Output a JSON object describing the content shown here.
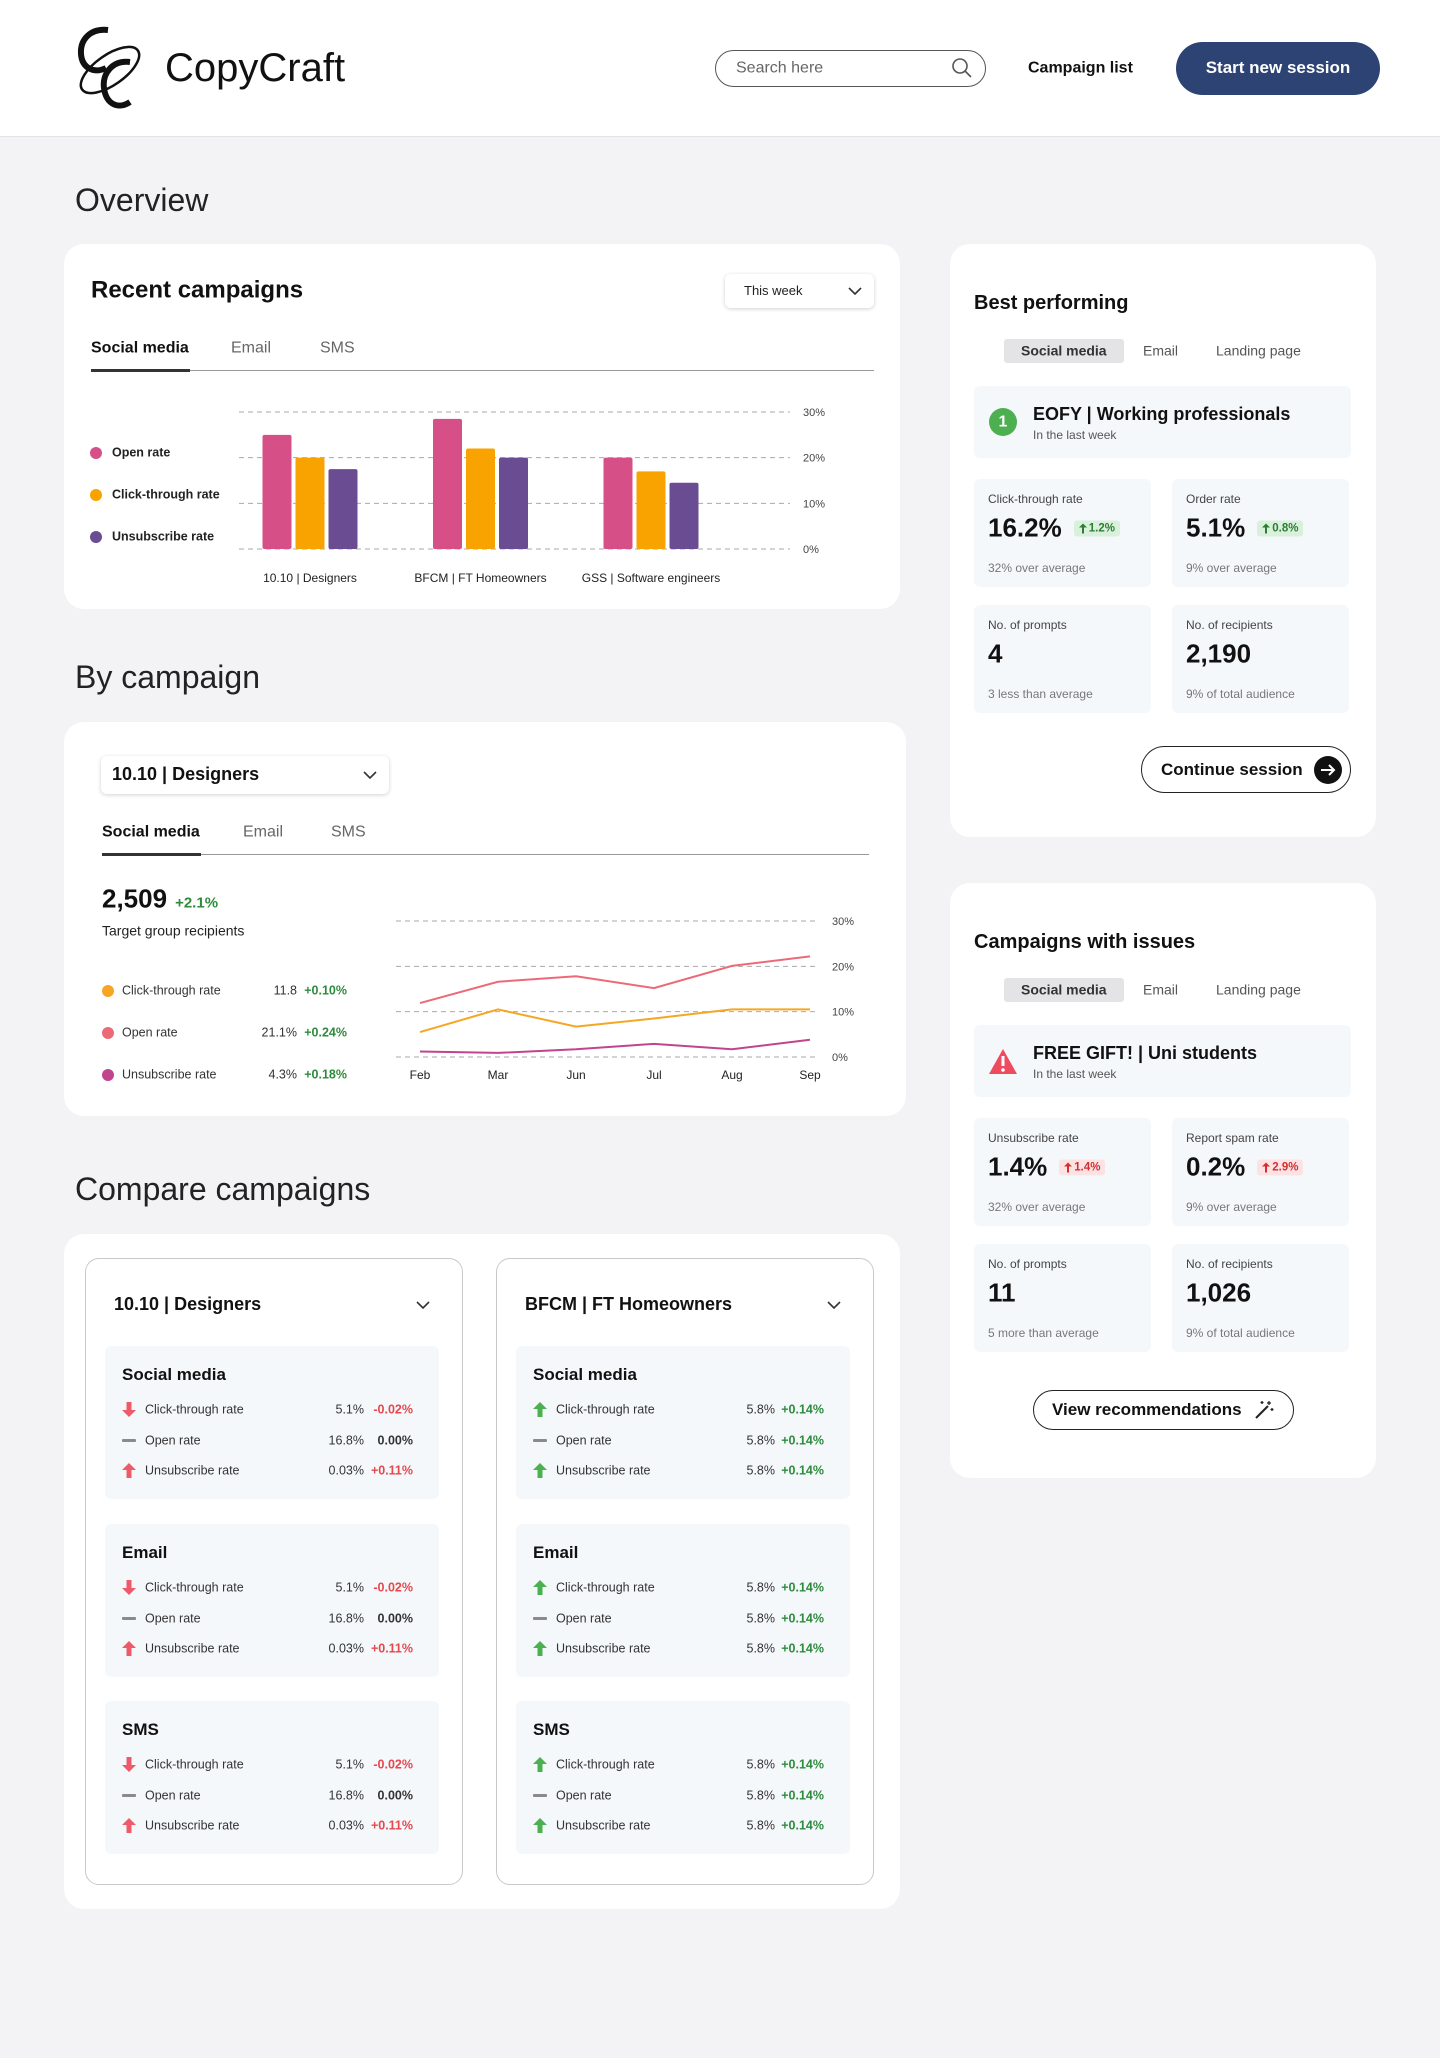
{
  "header": {
    "brand": "CopyCraft",
    "search_placeholder": "Search here",
    "nav": "Campaign list",
    "cta": "Start new session"
  },
  "overview": {
    "heading": "Overview",
    "recent": {
      "title": "Recent campaigns",
      "period": "This week",
      "tabs": [
        "Social media",
        "Email",
        "SMS"
      ],
      "chart_data": {
        "type": "bar",
        "categories": [
          "10.10 | Designers",
          "BFCM | FT Homeowners",
          "GSS | Software engineers"
        ],
        "series": [
          {
            "name": "Open rate",
            "color": "#d64f86",
            "values": [
              25,
              28.5,
              20
            ]
          },
          {
            "name": "Click-through rate",
            "color": "#f9a300",
            "values": [
              20,
              22,
              17
            ]
          },
          {
            "name": "Unsubscribe rate",
            "color": "#6a4c93",
            "values": [
              17.5,
              20,
              14.5
            ]
          }
        ],
        "ylim": [
          0,
          30
        ],
        "yticks": [
          {
            "value": 0,
            "label": "0%"
          },
          {
            "value": 10,
            "label": "10%"
          },
          {
            "value": 20,
            "label": "20%"
          },
          {
            "value": 30,
            "label": "30%"
          }
        ],
        "grid": true
      }
    }
  },
  "by_campaign": {
    "heading": "By campaign",
    "campaign": "10.10 | Designers",
    "tabs": [
      "Social media",
      "Email",
      "SMS"
    ],
    "recipients": "2,509",
    "recipients_change": "+2.1%",
    "recipients_label": "Target group recipients",
    "legend_values": [
      "11.8",
      "21.1%",
      "4.3%"
    ],
    "legend_changes": [
      "+0.10%",
      "+0.24%",
      "+0.18%"
    ],
    "chart_data": {
      "type": "line",
      "categories": [
        "Feb",
        "Mar",
        "Jun",
        "Jul",
        "Aug",
        "Sep"
      ],
      "series": [
        {
          "name": "Click-through rate",
          "color": "#f5a623",
          "values": [
            5.5,
            10.5,
            6.7,
            8.5,
            10.5,
            10.5
          ]
        },
        {
          "name": "Open rate",
          "color": "#ec6a78",
          "values": [
            11.9,
            16.6,
            17.8,
            15.2,
            20.1,
            22.2
          ]
        },
        {
          "name": "Unsubscribe rate",
          "color": "#c0448e",
          "values": [
            1.2,
            0.9,
            1.7,
            2.9,
            1.7,
            3.8
          ]
        }
      ],
      "ylim": [
        0,
        30
      ],
      "yticks": [
        {
          "value": 0,
          "label": "0%"
        },
        {
          "value": 10,
          "label": "10%"
        },
        {
          "value": 20,
          "label": "20%"
        },
        {
          "value": 30,
          "label": "30%"
        }
      ],
      "grid": true
    }
  },
  "compare": {
    "heading": "Compare campaigns",
    "campaigns": [
      {
        "name": "10.10 | Designers",
        "sections": [
          {
            "channel": "Social media",
            "rows": [
              {
                "metric": "Click-through rate",
                "value": "5.1%",
                "change": "-0.02%",
                "icon": "down",
                "color": "#e5484d"
              },
              {
                "metric": "Open rate",
                "value": "16.8%",
                "change": "0.00%",
                "icon": "flat",
                "color": "#333333"
              },
              {
                "metric": "Unsubscribe rate",
                "value": "0.03%",
                "change": "+0.11%",
                "icon": "up",
                "color": "#e5484d"
              }
            ]
          },
          {
            "channel": "Email",
            "rows": [
              {
                "metric": "Click-through rate",
                "value": "5.1%",
                "change": "-0.02%",
                "icon": "down",
                "color": "#e5484d"
              },
              {
                "metric": "Open rate",
                "value": "16.8%",
                "change": "0.00%",
                "icon": "flat",
                "color": "#333333"
              },
              {
                "metric": "Unsubscribe rate",
                "value": "0.03%",
                "change": "+0.11%",
                "icon": "up",
                "color": "#e5484d"
              }
            ]
          },
          {
            "channel": "SMS",
            "rows": [
              {
                "metric": "Click-through rate",
                "value": "5.1%",
                "change": "-0.02%",
                "icon": "down",
                "color": "#e5484d"
              },
              {
                "metric": "Open rate",
                "value": "16.8%",
                "change": "0.00%",
                "icon": "flat",
                "color": "#333333"
              },
              {
                "metric": "Unsubscribe rate",
                "value": "0.03%",
                "change": "+0.11%",
                "icon": "up",
                "color": "#e5484d"
              }
            ]
          }
        ]
      },
      {
        "name": "BFCM | FT Homeowners",
        "sections": [
          {
            "channel": "Social media",
            "rows": [
              {
                "metric": "Click-through rate",
                "value": "5.8%",
                "change": "+0.14%",
                "icon": "up",
                "color": "#2e8b3d"
              },
              {
                "metric": "Open rate",
                "value": "5.8%",
                "change": "+0.14%",
                "icon": "flat",
                "color": "#2e8b3d"
              },
              {
                "metric": "Unsubscribe rate",
                "value": "5.8%",
                "change": "+0.14%",
                "icon": "up",
                "color": "#2e8b3d"
              }
            ]
          },
          {
            "channel": "Email",
            "rows": [
              {
                "metric": "Click-through rate",
                "value": "5.8%",
                "change": "+0.14%",
                "icon": "up",
                "color": "#2e8b3d"
              },
              {
                "metric": "Open rate",
                "value": "5.8%",
                "change": "+0.14%",
                "icon": "flat",
                "color": "#2e8b3d"
              },
              {
                "metric": "Unsubscribe rate",
                "value": "5.8%",
                "change": "+0.14%",
                "icon": "up",
                "color": "#2e8b3d"
              }
            ]
          },
          {
            "channel": "SMS",
            "rows": [
              {
                "metric": "Click-through rate",
                "value": "5.8%",
                "change": "+0.14%",
                "icon": "up",
                "color": "#2e8b3d"
              },
              {
                "metric": "Open rate",
                "value": "5.8%",
                "change": "+0.14%",
                "icon": "flat",
                "color": "#2e8b3d"
              },
              {
                "metric": "Unsubscribe rate",
                "value": "5.8%",
                "change": "+0.14%",
                "icon": "up",
                "color": "#2e8b3d"
              }
            ]
          }
        ]
      }
    ]
  },
  "best": {
    "title": "Best performing",
    "tabs": [
      "Social media",
      "Email",
      "Landing page"
    ],
    "rank": "1",
    "campaign": "EOFY | Working professionals",
    "period": "In the last week",
    "stats": [
      {
        "label": "Click-through rate",
        "value": "16.2%",
        "badge": "1.2%",
        "note": "32% over average"
      },
      {
        "label": "Order rate",
        "value": "5.1%",
        "badge": "0.8%",
        "note": "9% over average"
      },
      {
        "label": "No. of prompts",
        "value": "4",
        "note": "3 less than average"
      },
      {
        "label": "No. of recipients",
        "value": "2,190",
        "note": "9% of total audience"
      }
    ],
    "action": "Continue session"
  },
  "issues": {
    "title": "Campaigns with issues",
    "tabs": [
      "Social media",
      "Email",
      "Landing page"
    ],
    "campaign": "FREE GIFT! | Uni students",
    "period": "In the last week",
    "stats": [
      {
        "label": "Unsubscribe rate",
        "value": "1.4%",
        "badge": "1.4%",
        "note": "32% over average"
      },
      {
        "label": "Report spam rate",
        "value": "0.2%",
        "badge": "2.9%",
        "note": "9% over average"
      },
      {
        "label": "No. of prompts",
        "value": "11",
        "note": "5 more than average"
      },
      {
        "label": "No. of recipients",
        "value": "1,026",
        "note": "9% of total audience"
      }
    ],
    "action": "View recommendations"
  }
}
